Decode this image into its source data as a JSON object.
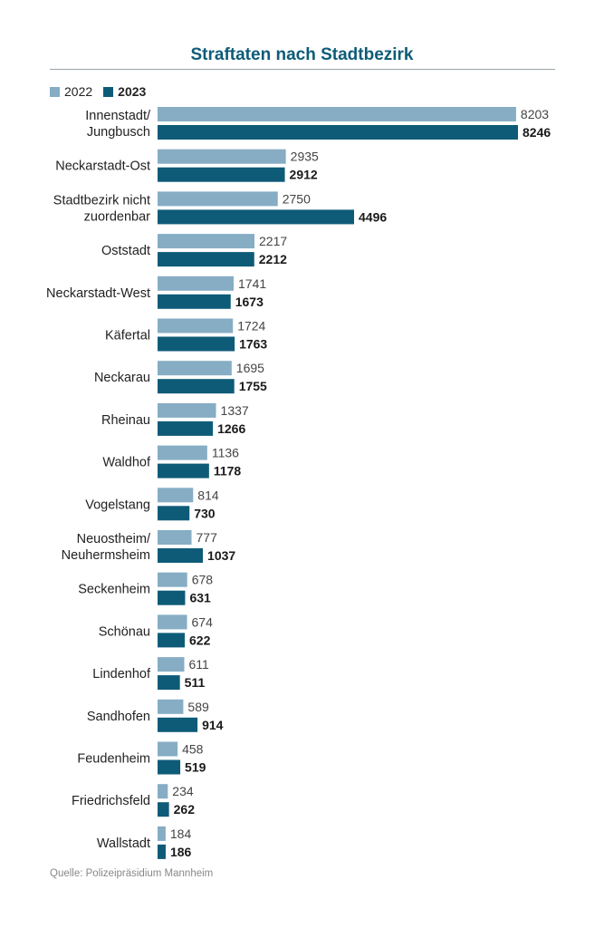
{
  "chart_data": {
    "type": "bar",
    "orientation": "horizontal",
    "title": "Straftaten nach Stadtbezirk",
    "categories": [
      [
        "Innenstadt/",
        "Jungbusch"
      ],
      [
        "Neckarstadt-Ost"
      ],
      [
        "Stadtbezirk nicht",
        "zuordenbar"
      ],
      [
        "Oststadt"
      ],
      [
        "Neckarstadt-West"
      ],
      [
        "Käfertal"
      ],
      [
        "Neckarau"
      ],
      [
        "Rheinau"
      ],
      [
        "Waldhof"
      ],
      [
        "Vogelstang"
      ],
      [
        "Neuostheim/",
        "Neuhermsheim"
      ],
      [
        "Seckenheim"
      ],
      [
        "Schönau"
      ],
      [
        "Lindenhof"
      ],
      [
        "Sandhofen"
      ],
      [
        "Feudenheim"
      ],
      [
        "Friedrichsfeld"
      ],
      [
        "Wallstadt"
      ]
    ],
    "series": [
      {
        "name": "2022",
        "color": "#86adc4",
        "values": [
          8203,
          2935,
          2750,
          2217,
          1741,
          1724,
          1695,
          1337,
          1136,
          814,
          777,
          678,
          674,
          611,
          589,
          458,
          234,
          184
        ]
      },
      {
        "name": "2023",
        "color": "#0e5b78",
        "values": [
          8246,
          2912,
          4496,
          2212,
          1673,
          1763,
          1755,
          1266,
          1178,
          730,
          1037,
          631,
          622,
          511,
          914,
          519,
          262,
          186
        ]
      }
    ],
    "xlim": [
      0,
      8246
    ],
    "grid": false,
    "legend_position": "top-left",
    "source": "Quelle: Polizeipräsidium Mannheim"
  }
}
